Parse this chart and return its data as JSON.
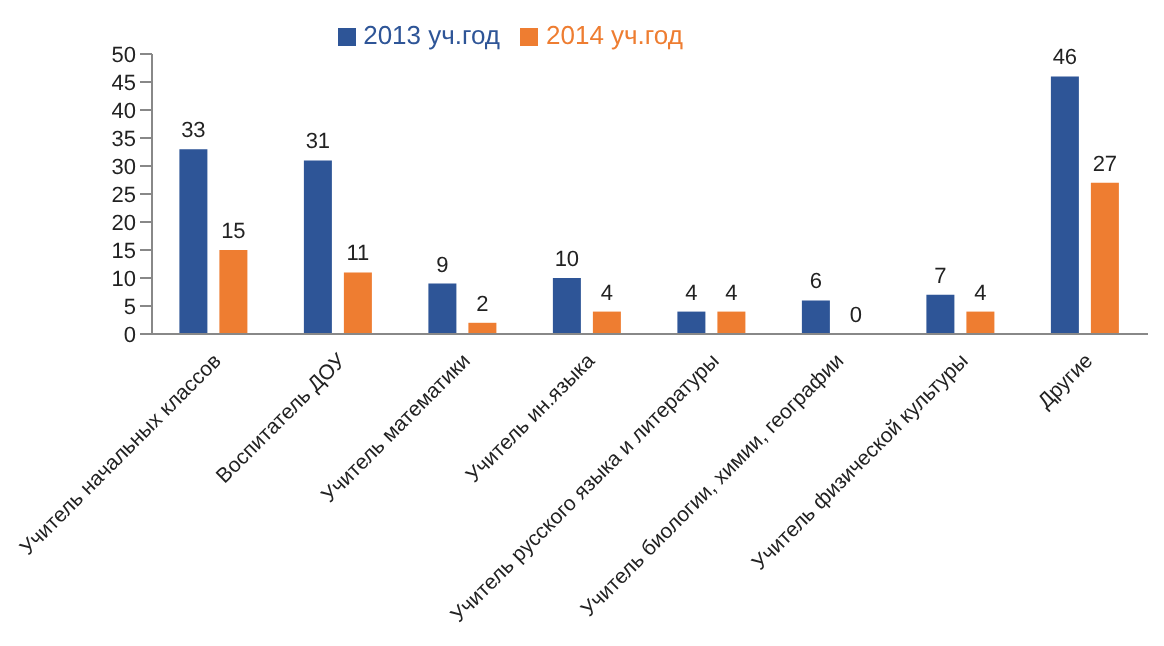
{
  "chart_data": {
    "type": "bar",
    "categories": [
      "Учитель начальных классов",
      "Воспитатель ДОУ",
      "Учитель математики",
      "Учитель ин.языка",
      "Учитель русского языка и литературы",
      "Учитель биологии, химии, географии",
      "Учитель физической культуры",
      "Другие"
    ],
    "series": [
      {
        "name": "2013 уч.год",
        "color": "#2e5597",
        "values": [
          33,
          31,
          9,
          10,
          4,
          6,
          7,
          46
        ]
      },
      {
        "name": "2014 уч.год",
        "color": "#ee7d31",
        "values": [
          15,
          11,
          2,
          4,
          4,
          0,
          4,
          27
        ]
      }
    ],
    "ylim": [
      0,
      50
    ],
    "yticks": [
      0,
      5,
      10,
      15,
      20,
      25,
      30,
      35,
      40,
      45,
      50
    ],
    "grid": false,
    "legend": "top",
    "data_labels": true
  }
}
